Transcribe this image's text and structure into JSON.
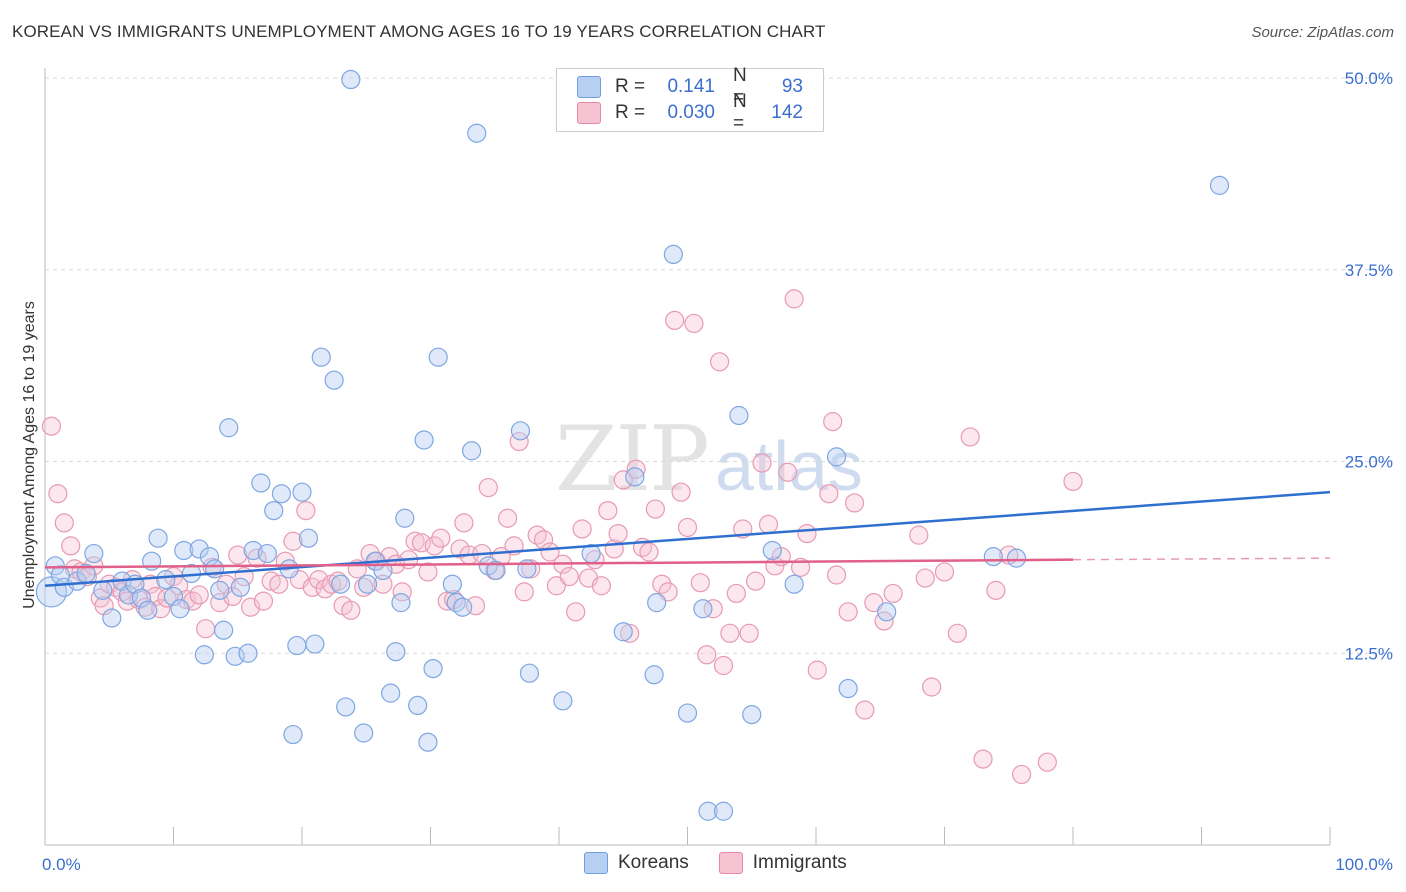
{
  "chart_data": {
    "type": "scatter",
    "title": "KOREAN VS IMMIGRANTS UNEMPLOYMENT AMONG AGES 16 TO 19 YEARS CORRELATION CHART",
    "source": "Source: ZipAtlas.com",
    "xlabel": "",
    "ylabel": "Unemployment Among Ages 16 to 19 years",
    "xlim": [
      0,
      100
    ],
    "ylim": [
      0,
      50
    ],
    "x_tick_labels": [
      "0.0%",
      "100.0%"
    ],
    "y_tick_labels": [
      "12.5%",
      "25.0%",
      "37.5%",
      "50.0%"
    ],
    "y_ticks": [
      12.5,
      25.0,
      37.5,
      50.0
    ],
    "grid": "horizontal dashed",
    "watermark": "ZIPatlas",
    "legend": {
      "r_label": "R =",
      "n_label": "N =",
      "entries": [
        {
          "name": "Koreans",
          "r": "0.141",
          "n": "93",
          "color": "#6f9fe0",
          "fill": "#b7cff2"
        },
        {
          "name": "Immigrants",
          "r": "0.030",
          "n": "142",
          "color": "#e58aa6",
          "fill": "#f6c3d3"
        }
      ]
    },
    "series": [
      {
        "name": "Koreans",
        "trend": {
          "x0": 0,
          "y0": 16.9,
          "x1": 100,
          "y1": 23.0
        },
        "points": [
          [
            0.5,
            16.5
          ],
          [
            0.8,
            18.2
          ],
          [
            1.2,
            17.6
          ],
          [
            1.5,
            16.8
          ],
          [
            2.5,
            17.2
          ],
          [
            3.2,
            17.7
          ],
          [
            3.8,
            19.0
          ],
          [
            4.5,
            16.6
          ],
          [
            5.2,
            14.8
          ],
          [
            6.0,
            17.2
          ],
          [
            6.5,
            16.3
          ],
          [
            7.0,
            17.0
          ],
          [
            7.5,
            16.1
          ],
          [
            8.0,
            15.3
          ],
          [
            8.3,
            18.5
          ],
          [
            8.8,
            20.0
          ],
          [
            9.4,
            17.3
          ],
          [
            10.0,
            16.2
          ],
          [
            10.5,
            15.4
          ],
          [
            10.8,
            19.2
          ],
          [
            11.4,
            17.7
          ],
          [
            12.0,
            19.3
          ],
          [
            12.4,
            12.4
          ],
          [
            12.8,
            18.8
          ],
          [
            13.2,
            18.0
          ],
          [
            13.6,
            16.6
          ],
          [
            13.9,
            14.0
          ],
          [
            14.3,
            27.2
          ],
          [
            14.8,
            12.3
          ],
          [
            15.2,
            16.8
          ],
          [
            15.8,
            12.5
          ],
          [
            16.2,
            19.2
          ],
          [
            16.8,
            23.6
          ],
          [
            17.3,
            19.0
          ],
          [
            17.8,
            21.8
          ],
          [
            18.4,
            22.9
          ],
          [
            19.0,
            18.0
          ],
          [
            19.3,
            7.2
          ],
          [
            19.6,
            13.0
          ],
          [
            20.0,
            23.0
          ],
          [
            20.5,
            20.0
          ],
          [
            21.0,
            13.1
          ],
          [
            21.5,
            31.8
          ],
          [
            22.5,
            30.3
          ],
          [
            23.0,
            17.0
          ],
          [
            23.4,
            9.0
          ],
          [
            23.8,
            49.9
          ],
          [
            24.8,
            7.3
          ],
          [
            25.1,
            17.0
          ],
          [
            25.7,
            18.5
          ],
          [
            26.3,
            17.9
          ],
          [
            26.9,
            9.9
          ],
          [
            27.3,
            12.6
          ],
          [
            27.7,
            15.8
          ],
          [
            28.0,
            21.3
          ],
          [
            29.0,
            9.1
          ],
          [
            29.5,
            26.4
          ],
          [
            29.8,
            6.7
          ],
          [
            30.2,
            11.5
          ],
          [
            30.6,
            31.8
          ],
          [
            31.7,
            17.0
          ],
          [
            32.0,
            15.8
          ],
          [
            32.5,
            15.5
          ],
          [
            33.2,
            25.7
          ],
          [
            33.6,
            46.4
          ],
          [
            34.5,
            18.2
          ],
          [
            35.1,
            17.9
          ],
          [
            37.0,
            27.0
          ],
          [
            37.5,
            18.0
          ],
          [
            37.7,
            11.2
          ],
          [
            40.3,
            9.4
          ],
          [
            42.5,
            19.0
          ],
          [
            45.0,
            13.9
          ],
          [
            45.9,
            24.0
          ],
          [
            47.4,
            11.1
          ],
          [
            47.6,
            15.8
          ],
          [
            48.9,
            38.5
          ],
          [
            50.0,
            8.6
          ],
          [
            51.2,
            15.4
          ],
          [
            51.6,
            2.2
          ],
          [
            52.8,
            2.2
          ],
          [
            54.0,
            28.0
          ],
          [
            55.0,
            8.5
          ],
          [
            56.6,
            19.2
          ],
          [
            58.3,
            17.0
          ],
          [
            59.3,
            50.0
          ],
          [
            61.6,
            25.3
          ],
          [
            62.5,
            10.2
          ],
          [
            65.5,
            15.2
          ],
          [
            91.4,
            43.0
          ],
          [
            73.8,
            18.8
          ],
          [
            75.6,
            18.7
          ],
          [
            52.0,
            49.5
          ]
        ]
      },
      {
        "name": "Immigrants",
        "trend": {
          "x0": 0,
          "y0": 18.1,
          "x1": 80,
          "y1": 18.6,
          "dashed_to": 100,
          "dashed_y": 18.7
        },
        "points": [
          [
            0.5,
            27.3
          ],
          [
            1.0,
            22.9
          ],
          [
            1.5,
            21.0
          ],
          [
            2.0,
            19.5
          ],
          [
            2.3,
            18.0
          ],
          [
            2.8,
            17.8
          ],
          [
            3.3,
            17.5
          ],
          [
            3.8,
            18.2
          ],
          [
            4.3,
            16.1
          ],
          [
            4.6,
            15.6
          ],
          [
            5.0,
            17.0
          ],
          [
            5.5,
            16.8
          ],
          [
            6.0,
            16.5
          ],
          [
            6.4,
            15.9
          ],
          [
            6.8,
            17.3
          ],
          [
            7.3,
            16.0
          ],
          [
            7.8,
            15.5
          ],
          [
            8.2,
            17.0
          ],
          [
            8.6,
            16.2
          ],
          [
            9.0,
            15.4
          ],
          [
            9.5,
            16.1
          ],
          [
            10.0,
            17.5
          ],
          [
            10.4,
            16.9
          ],
          [
            11.0,
            16.0
          ],
          [
            11.5,
            15.9
          ],
          [
            12.0,
            16.3
          ],
          [
            12.5,
            14.1
          ],
          [
            13.0,
            18.1
          ],
          [
            13.6,
            15.8
          ],
          [
            14.1,
            17.0
          ],
          [
            14.6,
            16.2
          ],
          [
            15.0,
            18.9
          ],
          [
            15.5,
            17.5
          ],
          [
            16.0,
            15.5
          ],
          [
            16.5,
            18.7
          ],
          [
            17.0,
            15.9
          ],
          [
            17.6,
            17.2
          ],
          [
            18.2,
            17.0
          ],
          [
            18.7,
            18.5
          ],
          [
            19.3,
            19.8
          ],
          [
            19.8,
            17.3
          ],
          [
            20.3,
            21.8
          ],
          [
            20.8,
            16.8
          ],
          [
            21.3,
            17.3
          ],
          [
            21.8,
            16.7
          ],
          [
            22.3,
            17.0
          ],
          [
            22.8,
            17.2
          ],
          [
            23.2,
            15.6
          ],
          [
            23.8,
            15.3
          ],
          [
            24.3,
            18.0
          ],
          [
            24.8,
            16.8
          ],
          [
            25.3,
            19.0
          ],
          [
            25.8,
            18.5
          ],
          [
            26.3,
            17.0
          ],
          [
            26.8,
            18.8
          ],
          [
            27.3,
            18.3
          ],
          [
            27.8,
            16.5
          ],
          [
            28.3,
            18.6
          ],
          [
            28.8,
            19.8
          ],
          [
            29.3,
            19.7
          ],
          [
            29.8,
            17.8
          ],
          [
            30.3,
            19.5
          ],
          [
            30.8,
            20.0
          ],
          [
            31.3,
            15.9
          ],
          [
            31.8,
            16.0
          ],
          [
            32.3,
            19.3
          ],
          [
            32.6,
            21.0
          ],
          [
            33.0,
            18.9
          ],
          [
            33.5,
            15.6
          ],
          [
            34.0,
            19.0
          ],
          [
            34.5,
            23.3
          ],
          [
            35.0,
            17.9
          ],
          [
            35.5,
            18.8
          ],
          [
            36.0,
            21.3
          ],
          [
            36.5,
            19.5
          ],
          [
            36.9,
            26.3
          ],
          [
            37.3,
            16.5
          ],
          [
            37.8,
            18.0
          ],
          [
            38.3,
            20.2
          ],
          [
            38.8,
            19.9
          ],
          [
            39.3,
            19.1
          ],
          [
            39.8,
            16.9
          ],
          [
            40.3,
            18.3
          ],
          [
            40.8,
            17.5
          ],
          [
            41.3,
            15.2
          ],
          [
            41.8,
            20.6
          ],
          [
            42.3,
            17.4
          ],
          [
            42.8,
            18.6
          ],
          [
            43.3,
            16.9
          ],
          [
            43.8,
            21.8
          ],
          [
            44.3,
            19.3
          ],
          [
            44.6,
            20.3
          ],
          [
            45.0,
            23.8
          ],
          [
            45.5,
            13.8
          ],
          [
            46.0,
            24.5
          ],
          [
            46.5,
            19.4
          ],
          [
            47.0,
            19.1
          ],
          [
            47.5,
            21.9
          ],
          [
            48.0,
            17.0
          ],
          [
            48.5,
            16.5
          ],
          [
            49.0,
            34.2
          ],
          [
            49.5,
            23.0
          ],
          [
            50.0,
            20.7
          ],
          [
            50.5,
            34.0
          ],
          [
            51.0,
            17.1
          ],
          [
            51.5,
            12.4
          ],
          [
            52.0,
            15.4
          ],
          [
            52.5,
            31.5
          ],
          [
            52.8,
            11.7
          ],
          [
            53.3,
            13.8
          ],
          [
            53.8,
            16.4
          ],
          [
            54.3,
            20.6
          ],
          [
            54.8,
            13.8
          ],
          [
            55.3,
            17.2
          ],
          [
            55.8,
            24.9
          ],
          [
            56.3,
            20.9
          ],
          [
            56.8,
            18.2
          ],
          [
            57.3,
            18.8
          ],
          [
            57.8,
            24.3
          ],
          [
            58.3,
            35.6
          ],
          [
            58.8,
            18.1
          ],
          [
            59.3,
            20.3
          ],
          [
            60.1,
            11.4
          ],
          [
            61.0,
            22.9
          ],
          [
            61.3,
            27.6
          ],
          [
            61.6,
            17.6
          ],
          [
            62.5,
            15.2
          ],
          [
            63.0,
            22.3
          ],
          [
            63.8,
            8.8
          ],
          [
            64.5,
            15.8
          ],
          [
            65.3,
            14.6
          ],
          [
            66.0,
            16.4
          ],
          [
            68.0,
            20.2
          ],
          [
            68.5,
            17.4
          ],
          [
            69.0,
            10.3
          ],
          [
            70.0,
            17.8
          ],
          [
            71.0,
            13.8
          ],
          [
            72.0,
            26.6
          ],
          [
            73.0,
            5.6
          ],
          [
            74.0,
            16.6
          ],
          [
            75.0,
            18.9
          ],
          [
            76.0,
            4.6
          ],
          [
            78.0,
            5.4
          ],
          [
            80.0,
            23.7
          ]
        ]
      }
    ]
  },
  "bottom_legend": [
    {
      "label": "Koreans"
    },
    {
      "label": "Immigrants"
    }
  ]
}
